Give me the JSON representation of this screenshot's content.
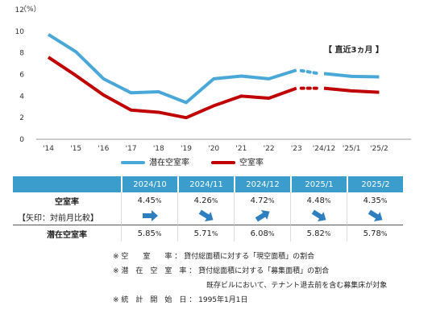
{
  "chart_data": {
    "type": "line",
    "y_unit_label": "（%）",
    "ylim": [
      0,
      12
    ],
    "y_ticks": [
      0,
      2,
      4,
      6,
      8,
      10,
      12
    ],
    "categories": [
      "'14",
      "'15",
      "'16",
      "'17",
      "'18",
      "'19",
      "'20",
      "'21",
      "'22",
      "'23",
      "'24/12",
      "'25/1",
      "'25/2"
    ],
    "period_label": "【 直近3ヵ月 】",
    "series": [
      {
        "name": "潜在空室率",
        "color": "#4aa8d8",
        "values": [
          9.7,
          8.1,
          5.6,
          4.3,
          4.4,
          3.4,
          5.6,
          5.85,
          5.6,
          6.4,
          6.08,
          5.82,
          5.78
        ]
      },
      {
        "name": "空室率",
        "color": "#c00000",
        "values": [
          7.6,
          5.9,
          4.1,
          2.7,
          2.5,
          2.0,
          3.1,
          4.0,
          3.8,
          4.72,
          4.72,
          4.48,
          4.35
        ]
      }
    ],
    "grid": false,
    "legend_position": "bottom"
  },
  "table": {
    "headers": [
      "2024/10",
      "2024/11",
      "2024/12",
      "2025/1",
      "2025/2"
    ],
    "vacancy_label": "空室率",
    "arrow_note": "【矢印：対前月比較】",
    "potential_label": "潜在空室率",
    "vacancy_values": [
      "4.45",
      "4.26",
      "4.72",
      "4.48",
      "4.35"
    ],
    "potential_values": [
      "5.85",
      "5.71",
      "6.08",
      "5.82",
      "5.78"
    ],
    "pct": "%",
    "arrows": [
      "right",
      "down",
      "up",
      "down",
      "down"
    ]
  },
  "notes": [
    "※ 空　　室　　率 ： 貸付総面積に対する「現空面積」の割合",
    "※ 潜　在　空　室　率 ： 貸付総面積に対する「募集面積」の割合",
    "既存ビルにおいて、テナント退去前を含む募集床が対象",
    "※ 統　計　開　始　日 ： 1995年1月1日"
  ],
  "colors": {
    "accent": "#3a9dcc",
    "arrow": "#2e7fbf"
  }
}
